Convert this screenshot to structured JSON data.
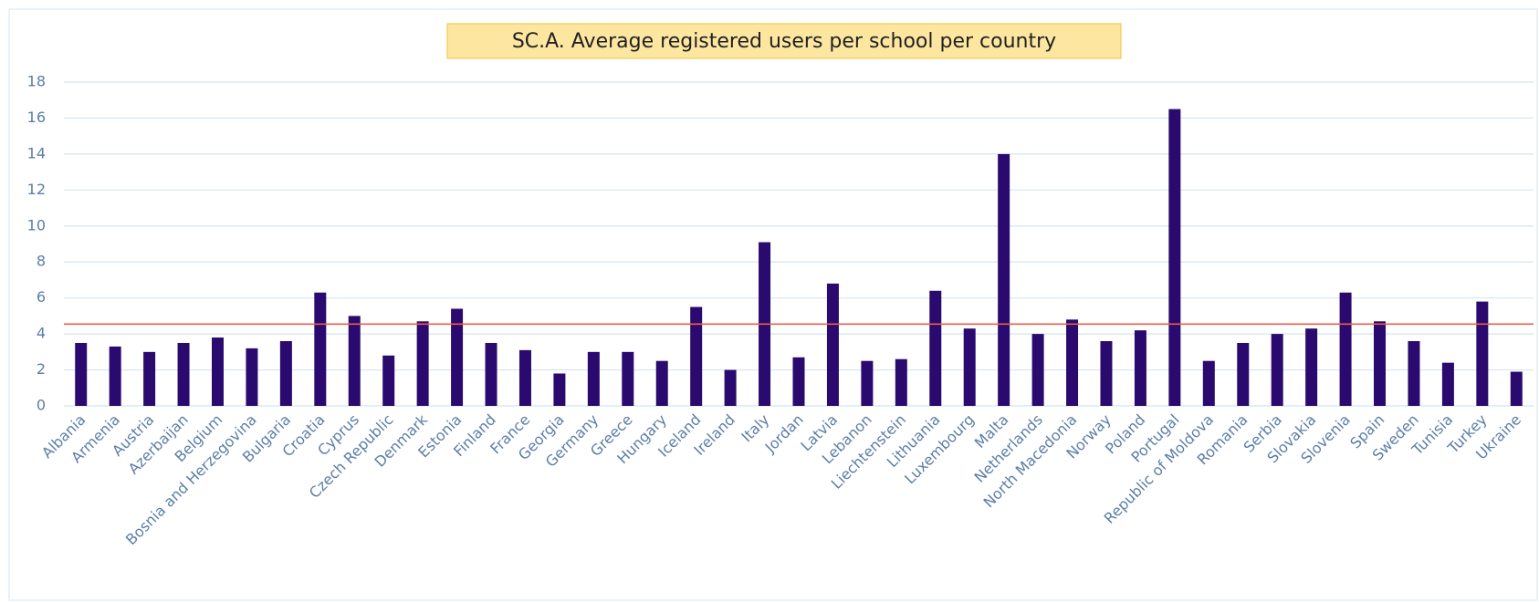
{
  "chart_data": {
    "type": "bar",
    "title": "SC.A. Average registered users per school per country",
    "categories": [
      "Albania",
      "Armenia",
      "Austria",
      "Azerbaijan",
      "Belgium",
      "Bosnia and Herzegovina",
      "Bulgaria",
      "Croatia",
      "Cyprus",
      "Czech Republic",
      "Denmark",
      "Estonia",
      "Finland",
      "France",
      "Georgia",
      "Germany",
      "Greece",
      "Hungary",
      "Iceland",
      "Ireland",
      "Italy",
      "Jordan",
      "Latvia",
      "Lebanon",
      "Liechtenstein",
      "Lithuania",
      "Luxembourg",
      "Malta",
      "Netherlands",
      "North Macedonia",
      "Norway",
      "Poland",
      "Portugal",
      "Republic of Moldova",
      "Romania",
      "Serbia",
      "Slovakia",
      "Slovenia",
      "Spain",
      "Sweden",
      "Tunisia",
      "Turkey",
      "Ukraine"
    ],
    "values": [
      3.5,
      3.3,
      3.0,
      3.5,
      3.8,
      3.2,
      3.6,
      6.3,
      5.0,
      2.8,
      4.7,
      5.4,
      3.5,
      3.1,
      1.8,
      3.0,
      3.0,
      2.5,
      5.5,
      2.0,
      9.1,
      2.7,
      6.8,
      2.5,
      2.6,
      6.4,
      4.3,
      14.0,
      4.0,
      4.8,
      3.6,
      4.2,
      16.5,
      2.5,
      3.5,
      4.0,
      4.3,
      6.3,
      4.7,
      3.6,
      2.4,
      5.8,
      1.9
    ],
    "color": "#2a0a6e",
    "reference_line": {
      "value": 4.55,
      "color": "#e8604c"
    },
    "ylim": [
      0,
      18
    ],
    "yticks": [
      0,
      2,
      4,
      6,
      8,
      10,
      12,
      14,
      16,
      18
    ],
    "grid": true
  }
}
